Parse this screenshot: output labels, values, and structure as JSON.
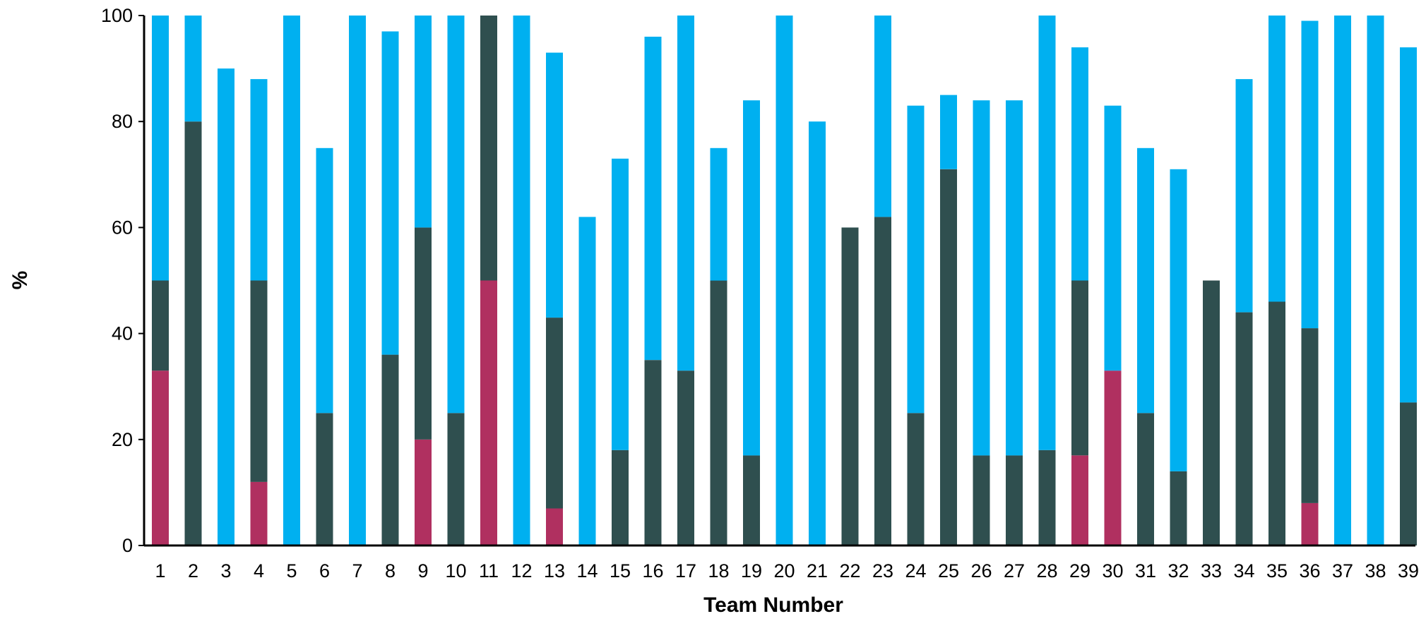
{
  "chart_data": {
    "type": "bar",
    "stacked": true,
    "xlabel": "Team Number",
    "ylabel": "%",
    "ylim": [
      0,
      100
    ],
    "yticks": [
      0,
      20,
      40,
      60,
      80,
      100
    ],
    "grid": false,
    "legend": "none",
    "categories": [
      "1",
      "2",
      "3",
      "4",
      "5",
      "6",
      "7",
      "8",
      "9",
      "10",
      "11",
      "12",
      "13",
      "14",
      "15",
      "16",
      "17",
      "18",
      "19",
      "20",
      "21",
      "22",
      "23",
      "24",
      "25",
      "26",
      "27",
      "28",
      "29",
      "30",
      "31",
      "32",
      "33",
      "34",
      "35",
      "36",
      "37",
      "38",
      "39"
    ],
    "series": [
      {
        "color": "#b03060",
        "values": [
          33,
          0,
          0,
          12,
          0,
          0,
          0,
          0,
          20,
          0,
          50,
          0,
          7,
          0,
          0,
          0,
          0,
          0,
          0,
          0,
          0,
          0,
          0,
          0,
          0,
          0,
          0,
          0,
          17,
          33,
          0,
          0,
          0,
          0,
          0,
          8,
          0,
          0,
          0
        ]
      },
      {
        "color": "#2f4f4f",
        "values": [
          17,
          80,
          0,
          38,
          0,
          25,
          0,
          36,
          40,
          25,
          50,
          0,
          36,
          0,
          18,
          35,
          33,
          50,
          17,
          0,
          0,
          60,
          62,
          25,
          71,
          17,
          17,
          18,
          33,
          0,
          25,
          14,
          50,
          44,
          46,
          33,
          0,
          0,
          27
        ]
      },
      {
        "color": "#00b0f0",
        "values": [
          50,
          20,
          90,
          38,
          100,
          50,
          100,
          61,
          40,
          75,
          0,
          100,
          50,
          62,
          55,
          61,
          67,
          25,
          67,
          100,
          80,
          0,
          38,
          58,
          14,
          67,
          67,
          82,
          44,
          50,
          50,
          57,
          0,
          44,
          54,
          58,
          100,
          100,
          67
        ]
      }
    ]
  }
}
